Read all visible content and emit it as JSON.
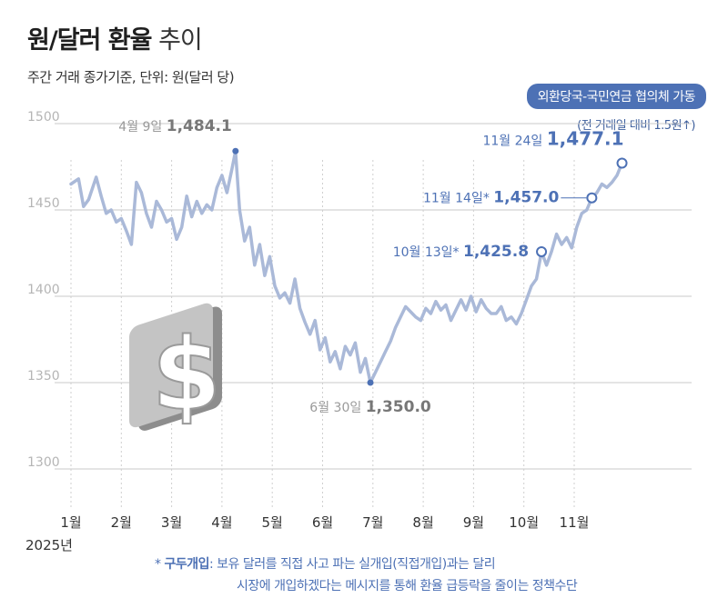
{
  "header": {
    "title_bold": "원/달러 환율",
    "title_light": "추이",
    "subtitle": "주간 거래 종가기준, 단위: 원(달러 당)"
  },
  "event": {
    "badge": "외환당국-국민연금 협의체 가동",
    "note": "(전 거래일 대비 1.5원↑)"
  },
  "footnote": {
    "marker": "*",
    "term": "구두개입",
    "line1": ": 보유 달러를 직접 사고 파는 실개입(직접개입)과는 달리",
    "line2": "시장에 개입하겠다는 메시지를 통해 환율 급등락을 줄이는 정책수단"
  },
  "colors": {
    "line": "#aab9d8",
    "accent": "#4d71b5",
    "gray_label": "#9a9a9a",
    "dark_label": "#777777",
    "grid": "#c8c8c8"
  },
  "chart_data": {
    "type": "line",
    "title": "원/달러 환율 추이",
    "ylabel": "원(달러 당)",
    "ylim": [
      1285,
      1500
    ],
    "y_ticks": [
      1500,
      1450,
      1400,
      1350,
      1300
    ],
    "x_ticks": [
      "1월",
      "2월",
      "3월",
      "4월",
      "5월",
      "6월",
      "7월",
      "8월",
      "9월",
      "10월",
      "11월"
    ],
    "year_label": "2025년",
    "series": [
      {
        "name": "원/달러 환율",
        "x": [
          0,
          0.15,
          0.25,
          0.35,
          0.5,
          0.6,
          0.7,
          0.8,
          0.9,
          1.0,
          1.1,
          1.2,
          1.3,
          1.4,
          1.5,
          1.6,
          1.7,
          1.8,
          1.9,
          2.0,
          2.1,
          2.2,
          2.3,
          2.4,
          2.5,
          2.6,
          2.7,
          2.8,
          2.9,
          3.0,
          3.1,
          3.2,
          3.27,
          3.35,
          3.45,
          3.55,
          3.65,
          3.75,
          3.85,
          3.95,
          4.05,
          4.15,
          4.25,
          4.35,
          4.45,
          4.55,
          4.65,
          4.75,
          4.85,
          4.95,
          5.05,
          5.15,
          5.25,
          5.35,
          5.45,
          5.55,
          5.65,
          5.75,
          5.85,
          5.95,
          6.05,
          6.15,
          6.25,
          6.35,
          6.45,
          6.55,
          6.65,
          6.75,
          6.85,
          6.95,
          7.05,
          7.15,
          7.25,
          7.35,
          7.45,
          7.55,
          7.65,
          7.75,
          7.85,
          7.95,
          8.05,
          8.15,
          8.25,
          8.35,
          8.45,
          8.55,
          8.65,
          8.75,
          8.85,
          8.95,
          9.05,
          9.15,
          9.25,
          9.35,
          9.45,
          9.55,
          9.65,
          9.75,
          9.85,
          9.95,
          10.05,
          10.15,
          10.25,
          10.35,
          10.45,
          10.55,
          10.65,
          10.75,
          10.85,
          10.95
        ],
        "values": [
          1465,
          1468,
          1452,
          1456,
          1469,
          1458,
          1448,
          1450,
          1443,
          1445,
          1438,
          1430,
          1466,
          1460,
          1448,
          1440,
          1455,
          1450,
          1443,
          1445,
          1433,
          1440,
          1458,
          1446,
          1455,
          1448,
          1453,
          1450,
          1463,
          1470,
          1460,
          1474,
          1484.1,
          1450,
          1432,
          1440,
          1418,
          1430,
          1412,
          1423,
          1406,
          1399,
          1402,
          1396,
          1410,
          1393,
          1385,
          1378,
          1386,
          1369,
          1376,
          1362,
          1368,
          1358,
          1371,
          1366,
          1373,
          1356,
          1364,
          1350,
          1356,
          1362,
          1368,
          1374,
          1382,
          1388,
          1394,
          1391,
          1388,
          1386,
          1393,
          1390,
          1397,
          1392,
          1395,
          1386,
          1392,
          1398,
          1392,
          1400,
          1391,
          1398,
          1393,
          1390,
          1390,
          1394,
          1386,
          1388,
          1384,
          1390,
          1398,
          1406,
          1410,
          1425.8,
          1418,
          1426,
          1436,
          1430,
          1434,
          1428,
          1440,
          1448,
          1450,
          1457,
          1460,
          1465,
          1463,
          1466,
          1470,
          1477.1
        ]
      }
    ],
    "annotations": [
      {
        "label": "4월 9일",
        "value": "1,484.1",
        "x": 3.27,
        "y": 1484.1
      },
      {
        "label": "6월 30일",
        "value": "1,350.0",
        "x": 5.95,
        "y": 1350.0
      },
      {
        "label": "10월 13일*",
        "value": "1,425.8",
        "x": 9.35,
        "y": 1425.8
      },
      {
        "label": "11월 14일*",
        "value": "1,457.0",
        "x": 10.35,
        "y": 1457.0
      },
      {
        "label": "11월 24일",
        "value": "1,477.1",
        "x": 10.95,
        "y": 1477.1
      }
    ]
  },
  "icon": {
    "name": "dollar-icon",
    "glyph": "$"
  }
}
